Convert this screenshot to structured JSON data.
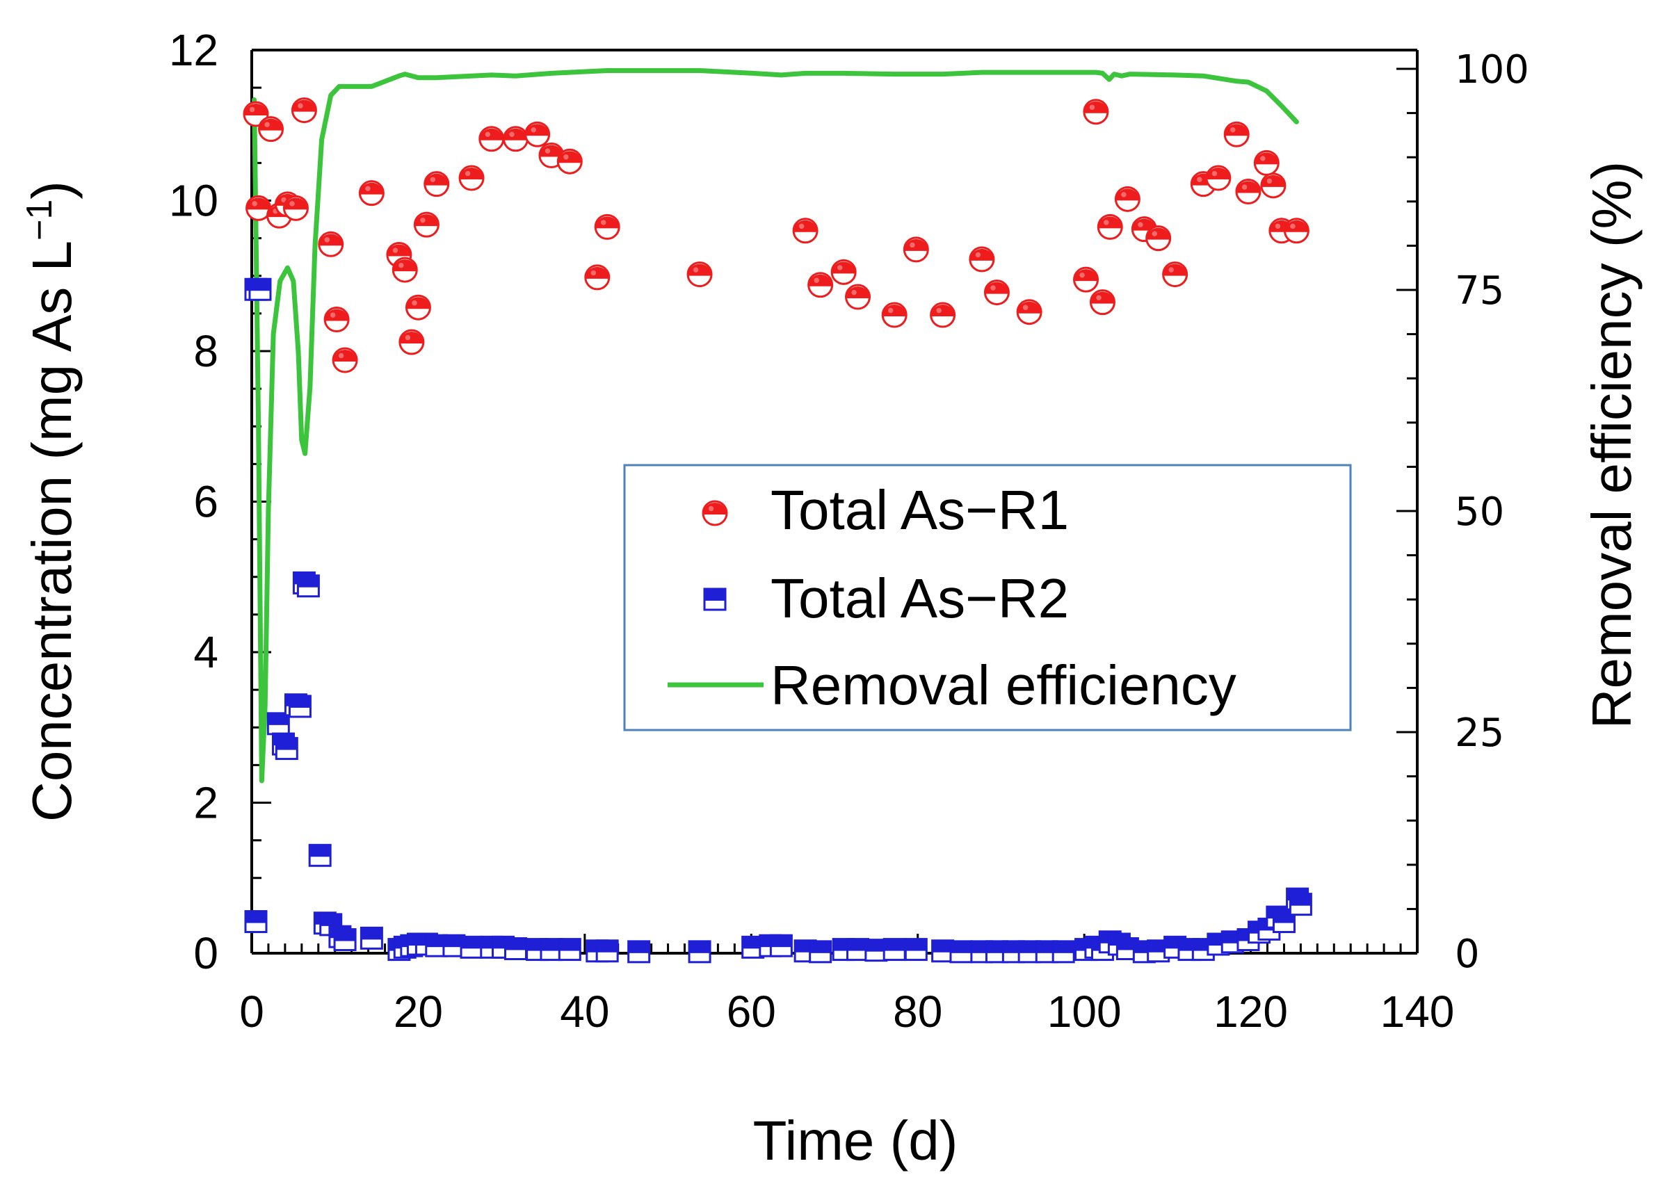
{
  "chart_data": {
    "type": "scatter",
    "xlabel": "Time (d)",
    "ylabel_main": "Concentration (mg As L",
    "ylabel_sup": "−1",
    "ylabel_close": ")",
    "y2label": "Removal efficiency (%)",
    "xlim": [
      0,
      140
    ],
    "ylim": [
      0,
      12
    ],
    "y2lim": [
      0,
      100
    ],
    "x_ticks": [
      0,
      20,
      40,
      60,
      80,
      100,
      120,
      140
    ],
    "y_ticks": [
      0,
      2,
      4,
      6,
      8,
      10,
      12
    ],
    "y2_ticks": [
      0,
      25,
      50,
      75,
      100
    ],
    "legend_position": "center-right",
    "grid": false,
    "colors": {
      "r1": "#ee1c1c",
      "r2": "#1f1fd6",
      "efficiency": "#3cc43c",
      "legend_border": "#4f81bd"
    },
    "series": [
      {
        "name": "Total As−R1",
        "marker": "half-filled-circle",
        "axis": "left",
        "points": [
          [
            0.5,
            11.15
          ],
          [
            0.8,
            9.9
          ],
          [
            2.3,
            10.95
          ],
          [
            3.3,
            9.8
          ],
          [
            4.3,
            9.95
          ],
          [
            5.3,
            9.9
          ],
          [
            6.3,
            11.2
          ],
          [
            9.5,
            9.42
          ],
          [
            10.2,
            8.42
          ],
          [
            11.2,
            7.88
          ],
          [
            14.4,
            10.1
          ],
          [
            17.7,
            9.28
          ],
          [
            18.4,
            9.08
          ],
          [
            19.2,
            8.12
          ],
          [
            20.0,
            8.58
          ],
          [
            21.0,
            9.68
          ],
          [
            22.2,
            10.22
          ],
          [
            26.4,
            10.3
          ],
          [
            28.8,
            10.82
          ],
          [
            31.7,
            10.82
          ],
          [
            34.3,
            10.88
          ],
          [
            36.0,
            10.6
          ],
          [
            38.2,
            10.52
          ],
          [
            41.5,
            8.98
          ],
          [
            42.7,
            9.65
          ],
          [
            53.8,
            9.02
          ],
          [
            66.5,
            9.6
          ],
          [
            68.3,
            8.88
          ],
          [
            71.1,
            9.05
          ],
          [
            72.8,
            8.72
          ],
          [
            77.2,
            8.48
          ],
          [
            79.8,
            9.35
          ],
          [
            83.0,
            8.48
          ],
          [
            87.7,
            9.22
          ],
          [
            89.5,
            8.78
          ],
          [
            93.4,
            8.52
          ],
          [
            100.2,
            8.95
          ],
          [
            101.4,
            11.18
          ],
          [
            102.2,
            8.65
          ],
          [
            103.1,
            9.65
          ],
          [
            105.2,
            10.02
          ],
          [
            107.2,
            9.62
          ],
          [
            108.9,
            9.5
          ],
          [
            110.9,
            9.02
          ],
          [
            114.3,
            10.22
          ],
          [
            116.1,
            10.3
          ],
          [
            118.3,
            10.88
          ],
          [
            119.7,
            10.12
          ],
          [
            121.9,
            10.5
          ],
          [
            122.7,
            10.2
          ],
          [
            123.7,
            9.6
          ],
          [
            125.5,
            9.6
          ]
        ]
      },
      {
        "name": "Total As−R2",
        "marker": "half-filled-square",
        "axis": "left",
        "points": [
          [
            0.5,
            8.82
          ],
          [
            1.0,
            8.82
          ],
          [
            3.2,
            3.05
          ],
          [
            3.8,
            2.78
          ],
          [
            4.2,
            2.72
          ],
          [
            5.3,
            3.3
          ],
          [
            5.8,
            3.28
          ],
          [
            6.3,
            4.92
          ],
          [
            6.8,
            4.88
          ],
          [
            8.2,
            1.3
          ],
          [
            8.8,
            0.4
          ],
          [
            9.5,
            0.38
          ],
          [
            10.6,
            0.22
          ],
          [
            11.2,
            0.18
          ],
          [
            14.4,
            0.2
          ],
          [
            0.5,
            0.42
          ],
          [
            17.7,
            0.05
          ],
          [
            18.4,
            0.08
          ],
          [
            19.2,
            0.1
          ],
          [
            20.0,
            0.12
          ],
          [
            21.0,
            0.12
          ],
          [
            22.2,
            0.1
          ],
          [
            24.3,
            0.1
          ],
          [
            26.4,
            0.08
          ],
          [
            28.8,
            0.08
          ],
          [
            30.2,
            0.08
          ],
          [
            31.7,
            0.06
          ],
          [
            34.3,
            0.05
          ],
          [
            36.0,
            0.05
          ],
          [
            38.2,
            0.05
          ],
          [
            41.5,
            0.03
          ],
          [
            42.7,
            0.03
          ],
          [
            46.5,
            0.02
          ],
          [
            53.8,
            0.02
          ],
          [
            60.2,
            0.08
          ],
          [
            62.3,
            0.1
          ],
          [
            63.6,
            0.1
          ],
          [
            66.5,
            0.03
          ],
          [
            68.3,
            0.02
          ],
          [
            71.1,
            0.05
          ],
          [
            72.8,
            0.05
          ],
          [
            75.0,
            0.04
          ],
          [
            77.2,
            0.05
          ],
          [
            79.8,
            0.05
          ],
          [
            83.0,
            0.03
          ],
          [
            85.2,
            0.02
          ],
          [
            87.7,
            0.02
          ],
          [
            89.5,
            0.02
          ],
          [
            91.5,
            0.02
          ],
          [
            93.4,
            0.02
          ],
          [
            95.5,
            0.02
          ],
          [
            97.5,
            0.02
          ],
          [
            100.2,
            0.05
          ],
          [
            101.4,
            0.08
          ],
          [
            102.2,
            0.05
          ],
          [
            103.1,
            0.15
          ],
          [
            104.2,
            0.12
          ],
          [
            105.2,
            0.06
          ],
          [
            107.2,
            0.02
          ],
          [
            108.9,
            0.03
          ],
          [
            110.9,
            0.08
          ],
          [
            112.6,
            0.05
          ],
          [
            114.3,
            0.05
          ],
          [
            116.1,
            0.12
          ],
          [
            117.8,
            0.15
          ],
          [
            119.7,
            0.18
          ],
          [
            121.0,
            0.28
          ],
          [
            122.2,
            0.32
          ],
          [
            123.2,
            0.48
          ],
          [
            124.0,
            0.42
          ],
          [
            125.6,
            0.72
          ],
          [
            126.0,
            0.65
          ]
        ]
      },
      {
        "name": "Removal efficiency",
        "type": "line",
        "axis": "right",
        "points": [
          [
            0.3,
            96.5
          ],
          [
            0.8,
            60.0
          ],
          [
            1.2,
            19.5
          ],
          [
            1.6,
            28.0
          ],
          [
            2.0,
            50.0
          ],
          [
            2.6,
            70.0
          ],
          [
            3.4,
            76.0
          ],
          [
            4.3,
            77.5
          ],
          [
            5.0,
            76.0
          ],
          [
            5.6,
            68.0
          ],
          [
            6.0,
            58.0
          ],
          [
            6.4,
            56.5
          ],
          [
            7.0,
            64.0
          ],
          [
            7.6,
            80.0
          ],
          [
            8.4,
            92.0
          ],
          [
            9.5,
            97.0
          ],
          [
            10.5,
            98.0
          ],
          [
            14.4,
            98.0
          ],
          [
            17.7,
            99.2
          ],
          [
            18.4,
            99.4
          ],
          [
            20.0,
            99.0
          ],
          [
            22.2,
            99.0
          ],
          [
            26.4,
            99.2
          ],
          [
            28.8,
            99.3
          ],
          [
            31.7,
            99.2
          ],
          [
            36.0,
            99.5
          ],
          [
            42.7,
            99.8
          ],
          [
            53.8,
            99.8
          ],
          [
            60.2,
            99.5
          ],
          [
            63.6,
            99.3
          ],
          [
            66.5,
            99.5
          ],
          [
            71.1,
            99.5
          ],
          [
            77.2,
            99.4
          ],
          [
            83.0,
            99.4
          ],
          [
            87.7,
            99.6
          ],
          [
            100.2,
            99.6
          ],
          [
            101.4,
            99.6
          ],
          [
            102.2,
            99.5
          ],
          [
            103.0,
            98.8
          ],
          [
            103.6,
            99.4
          ],
          [
            104.5,
            99.2
          ],
          [
            105.5,
            99.4
          ],
          [
            110.9,
            99.3
          ],
          [
            114.3,
            99.2
          ],
          [
            118.3,
            98.6
          ],
          [
            119.7,
            98.5
          ],
          [
            121.9,
            97.5
          ],
          [
            123.7,
            95.8
          ],
          [
            125.5,
            94.0
          ]
        ]
      }
    ]
  }
}
